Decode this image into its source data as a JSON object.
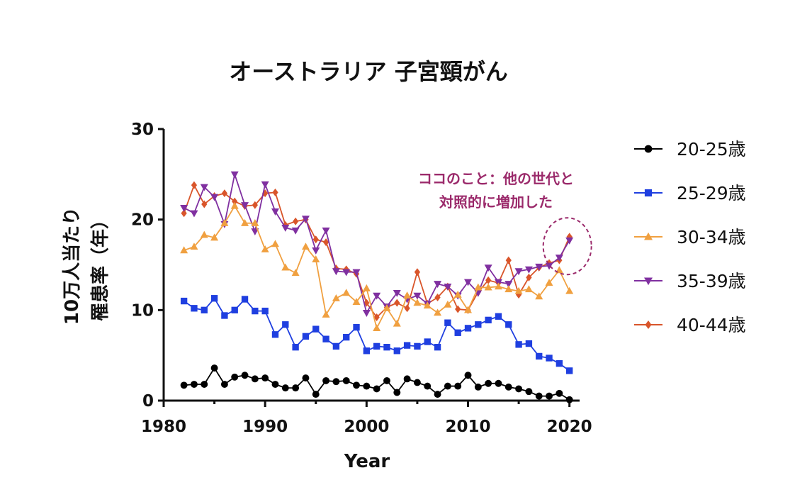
{
  "chart_data": {
    "type": "line",
    "title": "オーストラリア 子宮頸がん",
    "xlabel": "Year",
    "ylabel": [
      "10万人当たり",
      "罹患率（年）"
    ],
    "xlim": [
      1980,
      2021
    ],
    "ylim": [
      0,
      30
    ],
    "xticks": [
      1980,
      1990,
      2000,
      2010,
      2020
    ],
    "yticks": [
      0,
      10,
      20,
      30
    ],
    "legend_position": "right",
    "x": [
      1982,
      1983,
      1984,
      1985,
      1986,
      1987,
      1988,
      1989,
      1990,
      1991,
      1992,
      1993,
      1994,
      1995,
      1996,
      1997,
      1998,
      1999,
      2000,
      2001,
      2002,
      2003,
      2004,
      2005,
      2006,
      2007,
      2008,
      2009,
      2010,
      2011,
      2012,
      2013,
      2014,
      2015,
      2016,
      2017,
      2018,
      2019,
      2020
    ],
    "series": [
      {
        "name": "20-25歳",
        "color": "#000000",
        "marker": "circle",
        "values": [
          1.7,
          1.8,
          1.8,
          3.6,
          1.8,
          2.6,
          2.8,
          2.4,
          2.5,
          1.8,
          1.4,
          1.4,
          2.5,
          0.7,
          2.2,
          2.1,
          2.2,
          1.7,
          1.6,
          1.3,
          2.2,
          0.9,
          2.4,
          2.0,
          1.6,
          0.7,
          1.6,
          1.6,
          2.8,
          1.5,
          1.9,
          1.9,
          1.5,
          1.3,
          1.0,
          0.5,
          0.5,
          0.8,
          0.1
        ]
      },
      {
        "name": "25-29歳",
        "color": "#1f3fe0",
        "marker": "square",
        "values": [
          11.0,
          10.2,
          10.0,
          11.3,
          9.4,
          10.0,
          11.2,
          9.9,
          9.9,
          7.3,
          8.4,
          5.9,
          7.1,
          7.9,
          6.8,
          6.0,
          7.0,
          8.1,
          5.5,
          6.0,
          5.9,
          5.5,
          6.1,
          6.0,
          6.5,
          5.9,
          8.6,
          7.5,
          8.0,
          8.4,
          8.9,
          9.3,
          8.4,
          6.2,
          6.3,
          4.9,
          4.7,
          4.1,
          3.3
        ]
      },
      {
        "name": "30-34歳",
        "color": "#f0a040",
        "marker": "triangle-up",
        "values": [
          16.6,
          17.0,
          18.3,
          18.0,
          19.6,
          21.5,
          19.6,
          19.6,
          16.7,
          17.3,
          14.7,
          14.1,
          17.0,
          15.6,
          9.5,
          11.3,
          11.9,
          10.9,
          12.4,
          8.0,
          10.2,
          8.5,
          11.6,
          10.8,
          10.5,
          9.7,
          10.6,
          11.7,
          10.0,
          12.5,
          12.5,
          12.6,
          12.3,
          12.1,
          12.3,
          11.5,
          13.0,
          14.4,
          12.1
        ]
      },
      {
        "name": "35-39歳",
        "color": "#8030a0",
        "marker": "triangle-down",
        "values": [
          21.3,
          20.7,
          23.6,
          22.5,
          19.5,
          25.0,
          21.6,
          18.7,
          23.9,
          20.9,
          19.1,
          18.8,
          20.1,
          16.6,
          18.8,
          14.3,
          14.2,
          14.2,
          9.7,
          11.6,
          10.4,
          11.9,
          11.2,
          11.6,
          10.7,
          12.9,
          12.6,
          11.6,
          13.1,
          11.9,
          14.7,
          13.1,
          12.9,
          14.3,
          14.5,
          14.8,
          14.9,
          15.8,
          17.7
        ]
      },
      {
        "name": "40-44歳",
        "color": "#d9552a",
        "marker": "diamond",
        "values": [
          20.7,
          23.8,
          21.7,
          22.6,
          22.9,
          22.0,
          21.5,
          21.6,
          22.9,
          23.0,
          19.4,
          19.8,
          20.0,
          17.8,
          17.5,
          14.6,
          14.5,
          14.0,
          10.8,
          9.2,
          10.3,
          10.8,
          10.2,
          14.2,
          10.7,
          11.4,
          12.6,
          10.1,
          10.0,
          12.0,
          13.3,
          13.0,
          15.5,
          11.7,
          13.6,
          14.7,
          15.2,
          15.5,
          18.1
        ]
      }
    ],
    "annotation": {
      "lines": [
        "ココのこと：他の世代と",
        "対照的に増加した"
      ],
      "color": "#9b2a6b",
      "target_x": 2020,
      "target_y": 18
    }
  }
}
